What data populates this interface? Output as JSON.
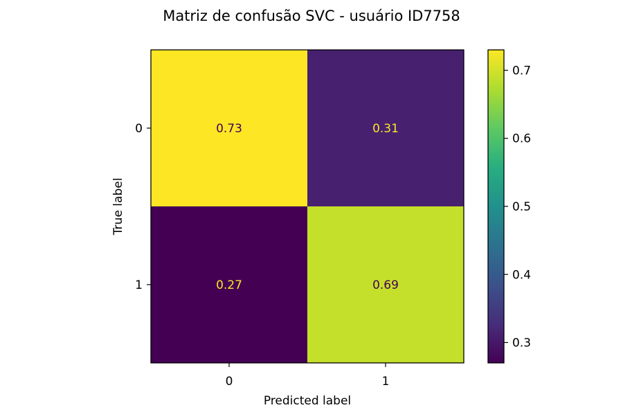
{
  "chart_data": {
    "type": "heatmap",
    "title": "Matriz de confusão SVC - usuário ID7758",
    "xlabel": "Predicted label",
    "ylabel": "True label",
    "x_categories": [
      "0",
      "1"
    ],
    "y_categories": [
      "0",
      "1"
    ],
    "values": [
      [
        0.73,
        0.31
      ],
      [
        0.27,
        0.69
      ]
    ],
    "cell_labels": [
      [
        "0.73",
        "0.31"
      ],
      [
        "0.27",
        "0.69"
      ]
    ],
    "colormap": "viridis",
    "color_range": [
      0.27,
      0.73
    ],
    "colorbar": {
      "ticks": [
        0.3,
        0.4,
        0.5,
        0.6,
        0.7
      ],
      "tick_labels": [
        "0.3",
        "0.4",
        "0.5",
        "0.6",
        "0.7"
      ]
    },
    "label_colors": {
      "on_dark": "#fde725",
      "on_light": "#440154"
    }
  }
}
